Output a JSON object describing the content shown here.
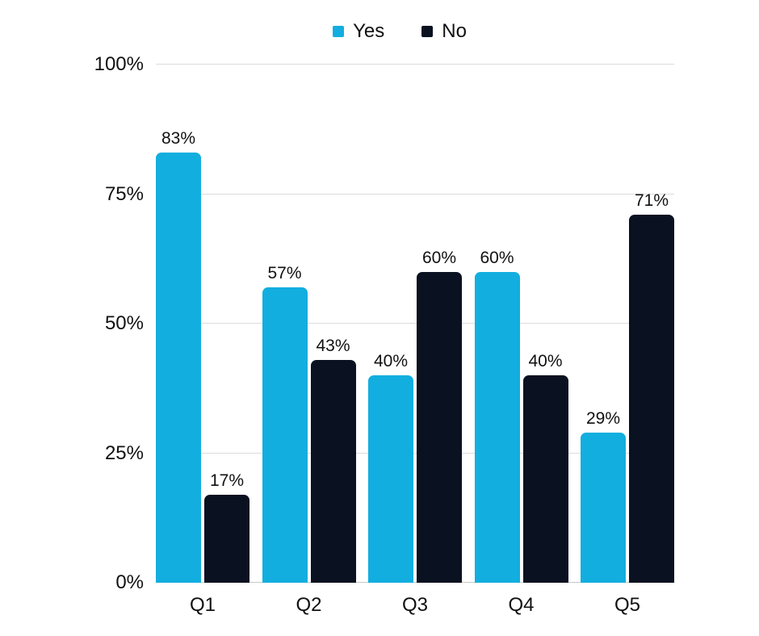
{
  "chart_data": {
    "type": "bar",
    "title": "",
    "xlabel": "",
    "ylabel": "",
    "categories": [
      "Q1",
      "Q2",
      "Q3",
      "Q4",
      "Q5"
    ],
    "series": [
      {
        "name": "Yes",
        "color": "#12AEDF",
        "values": [
          83,
          57,
          40,
          60,
          29
        ]
      },
      {
        "name": "No",
        "color": "#0A1120",
        "values": [
          17,
          43,
          60,
          40,
          71
        ]
      }
    ],
    "value_suffix": "%",
    "data_labels": [
      "83%",
      "17%",
      "57%",
      "43%",
      "40%",
      "60%",
      "60%",
      "40%",
      "29%",
      "71%"
    ],
    "ylim": [
      0,
      100
    ],
    "yticks": [
      0,
      25,
      50,
      75,
      100
    ],
    "ytick_labels": [
      "0%",
      "25%",
      "50%",
      "75%",
      "100%"
    ],
    "grid": "horizontal",
    "legend_position": "top-center",
    "background_color": "#FFFFFF",
    "gridline_color": "#DCDCDC",
    "text_color": "#111111"
  }
}
